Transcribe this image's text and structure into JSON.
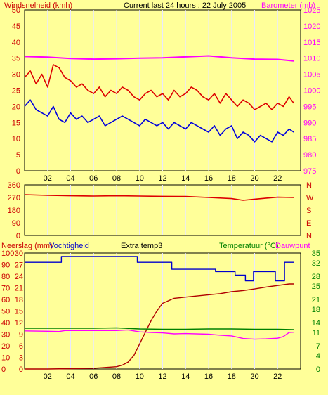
{
  "header": {
    "left_title": "Windsnelheid (kmh)",
    "center_title": "Current last 24 hours : 22 July 2005",
    "right_title": "Barometer (mb)"
  },
  "colors": {
    "background": "#ffff99",
    "plot_bg": "#ffff99",
    "grid": "#e8e8ff",
    "wind_gust": "#dd0000",
    "wind_avg": "#0000dd",
    "barometer": "#ff00ff",
    "wind_dir": "#dd0000",
    "rain": "#b00000",
    "humidity": "#0000cc",
    "temperature": "#008000",
    "dewpoint": "#ff00ff",
    "axis_red": "#cc0000",
    "axis_green": "#008000"
  },
  "chart_data": [
    {
      "type": "line",
      "id": "wind-barometer",
      "title": "Current last 24 hours : 22 July 2005",
      "xlabel": "",
      "x_ticks": [
        "02",
        "04",
        "06",
        "08",
        "10",
        "12",
        "14",
        "16",
        "18",
        "20",
        "22"
      ],
      "xlim": [
        0,
        24
      ],
      "grid": true,
      "left_axis": {
        "label": "Windsnelheid (kmh)",
        "ticks": [
          0,
          5,
          10,
          15,
          20,
          25,
          30,
          35,
          40,
          45,
          50
        ],
        "ylim": [
          0,
          50
        ]
      },
      "right_axis": {
        "label": "Barometer (mb)",
        "ticks": [
          975,
          980,
          985,
          990,
          995,
          1000,
          1005,
          1010,
          1015,
          1020,
          1025
        ],
        "ylim": [
          975,
          1025
        ]
      },
      "series": [
        {
          "name": "gust",
          "axis": "left",
          "x": [
            0,
            0.5,
            1,
            1.5,
            2,
            2.5,
            3,
            3.5,
            4,
            4.5,
            5,
            5.5,
            6,
            6.5,
            7,
            7.5,
            8,
            8.5,
            9,
            9.5,
            10,
            10.5,
            11,
            11.5,
            12,
            12.5,
            13,
            13.5,
            14,
            14.5,
            15,
            15.5,
            16,
            16.5,
            17,
            17.5,
            18,
            18.5,
            19,
            19.5,
            20,
            20.5,
            21,
            21.5,
            22,
            22.5,
            23,
            23.4
          ],
          "values": [
            29,
            31,
            27,
            30,
            26,
            33,
            32,
            29,
            28,
            26,
            27,
            25,
            24,
            26,
            23,
            25,
            24,
            26,
            25,
            23,
            22,
            24,
            25,
            23,
            24,
            22,
            25,
            23,
            24,
            26,
            25,
            23,
            22,
            24,
            21,
            24,
            22,
            20,
            22,
            21,
            19,
            20,
            21,
            19,
            21,
            20,
            23,
            21
          ]
        },
        {
          "name": "average",
          "axis": "left",
          "x": [
            0,
            0.5,
            1,
            1.5,
            2,
            2.5,
            3,
            3.5,
            4,
            4.5,
            5,
            5.5,
            6,
            6.5,
            7,
            7.5,
            8,
            8.5,
            9,
            9.5,
            10,
            10.5,
            11,
            11.5,
            12,
            12.5,
            13,
            13.5,
            14,
            14.5,
            15,
            15.5,
            16,
            16.5,
            17,
            17.5,
            18,
            18.5,
            19,
            19.5,
            20,
            20.5,
            21,
            21.5,
            22,
            22.5,
            23,
            23.4
          ],
          "values": [
            20,
            22,
            19,
            18,
            17,
            20,
            16,
            15,
            18,
            16,
            17,
            15,
            16,
            17,
            14,
            15,
            16,
            17,
            16,
            15,
            14,
            16,
            15,
            14,
            15,
            13,
            15,
            14,
            13,
            15,
            14,
            13,
            12,
            14,
            11,
            13,
            14,
            10,
            12,
            11,
            9,
            11,
            10,
            9,
            12,
            11,
            13,
            12
          ]
        },
        {
          "name": "barometer",
          "axis": "right",
          "x": [
            0,
            2,
            4,
            6,
            8,
            10,
            12,
            14,
            16,
            18,
            20,
            22,
            23.4
          ],
          "values": [
            1010.5,
            1010.3,
            1009.9,
            1009.7,
            1009.8,
            1010.0,
            1010.1,
            1010.4,
            1010.7,
            1010.1,
            1009.7,
            1009.6,
            1009.1
          ]
        }
      ]
    },
    {
      "type": "line",
      "id": "wind-direction",
      "x_ticks": [],
      "xlim": [
        0,
        24
      ],
      "grid": true,
      "left_axis": {
        "ticks": [
          0,
          90,
          180,
          270,
          360
        ],
        "ylim": [
          0,
          360
        ]
      },
      "right_axis": {
        "ticks": [
          "N",
          "W",
          "S",
          "E",
          "N"
        ]
      },
      "series": [
        {
          "name": "direction",
          "x": [
            0,
            2,
            4,
            6,
            8,
            10,
            12,
            14,
            16,
            18,
            19,
            20,
            22,
            23.4
          ],
          "values": [
            290,
            285,
            282,
            280,
            282,
            280,
            278,
            277,
            270,
            262,
            250,
            258,
            272,
            270
          ]
        }
      ]
    },
    {
      "type": "line",
      "id": "rain-humidity-temperature",
      "x_ticks": [
        "02",
        "04",
        "06",
        "08",
        "10",
        "12",
        "14",
        "16",
        "18",
        "20",
        "22"
      ],
      "xlim": [
        0,
        24
      ],
      "grid": true,
      "labels": {
        "rain": "Neerslag (mm)",
        "humidity": "Vochtigheid",
        "extra": "Extra temp3",
        "temperature": "Temperatuur (°C)",
        "dewpoint": "Dauwpunt"
      },
      "axis_rain": {
        "ticks": [
          0,
          10,
          20,
          30,
          40,
          50,
          60,
          70,
          80,
          90,
          100
        ],
        "ylim": [
          0,
          100
        ]
      },
      "axis_humidity": {
        "ticks": [
          0,
          3,
          6,
          9,
          12,
          15,
          18,
          21,
          24,
          27,
          30
        ],
        "ylim": [
          0,
          30
        ]
      },
      "axis_right": {
        "ticks": [
          0,
          4,
          7,
          11,
          14,
          18,
          21,
          25,
          28,
          32,
          35
        ],
        "ylim": [
          0,
          35
        ]
      },
      "series": [
        {
          "name": "Vochtigheid",
          "axis": "rain",
          "x": [
            0,
            3.2,
            3.2,
            9.8,
            9.8,
            12.8,
            12.8,
            16.6,
            16.6,
            18.3,
            18.3,
            19.2,
            19.2,
            19.9,
            19.9,
            21.8,
            21.8,
            22.6,
            22.6,
            23.4
          ],
          "values": [
            92,
            92,
            97,
            97,
            92,
            92,
            86,
            86,
            84,
            84,
            81,
            81,
            76,
            76,
            84,
            84,
            76,
            76,
            92,
            92
          ]
        },
        {
          "name": "Neerslag (mm)",
          "axis": "humidity",
          "x": [
            0,
            2,
            4,
            6,
            7,
            8,
            8.5,
            9,
            9.5,
            10,
            10.5,
            11,
            11.5,
            12,
            13,
            14,
            15,
            16,
            17,
            18,
            19,
            20,
            21,
            22,
            23,
            23.4
          ],
          "values": [
            0,
            0,
            0.1,
            0.2,
            0.4,
            0.6,
            1.0,
            1.8,
            3.5,
            6.5,
            9.5,
            12.5,
            15.0,
            17.0,
            18.3,
            18.6,
            18.9,
            19.2,
            19.5,
            20.0,
            20.3,
            20.7,
            21.2,
            21.6,
            22.0,
            22.0
          ]
        },
        {
          "name": "Temperatuur (°C)",
          "axis": "right",
          "x": [
            0,
            2,
            4,
            6,
            8,
            10,
            12,
            14,
            16,
            18,
            20,
            22,
            23.4
          ],
          "values": [
            12.3,
            12.3,
            12.3,
            12.3,
            12.4,
            12.1,
            12.0,
            12.0,
            12.1,
            12.1,
            12.0,
            12.0,
            11.9
          ]
        },
        {
          "name": "Dauwpunt",
          "axis": "right",
          "x": [
            0,
            2,
            3,
            3.5,
            4,
            6,
            8,
            9,
            10,
            11,
            12,
            13,
            14,
            16,
            17,
            18,
            18.5,
            19,
            20,
            21,
            22,
            22.5,
            23,
            23.4
          ],
          "values": [
            11.5,
            11.4,
            11.3,
            11.6,
            11.6,
            11.6,
            11.6,
            11.8,
            11.2,
            11.0,
            10.9,
            10.6,
            10.7,
            10.5,
            10.2,
            10.0,
            9.6,
            9.2,
            9.0,
            9.1,
            9.3,
            9.8,
            11.0,
            11.1
          ]
        }
      ]
    }
  ]
}
